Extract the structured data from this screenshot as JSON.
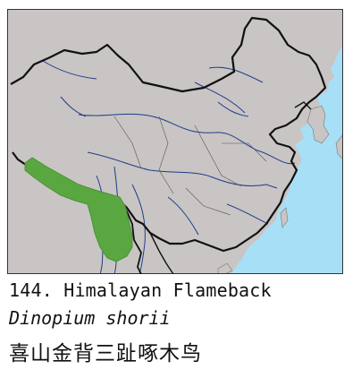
{
  "figure": {
    "number_name": "144. Himalayan Flameback",
    "scientific_name": "Dinopium shorii",
    "chinese_name": "喜山金背三趾啄木鸟"
  },
  "map": {
    "land_color": "#c9c5c4",
    "sea_color": "#a7dff6",
    "range_color": "#5aa741",
    "border_color": "#111111",
    "river_color": "#1f3c8a"
  }
}
